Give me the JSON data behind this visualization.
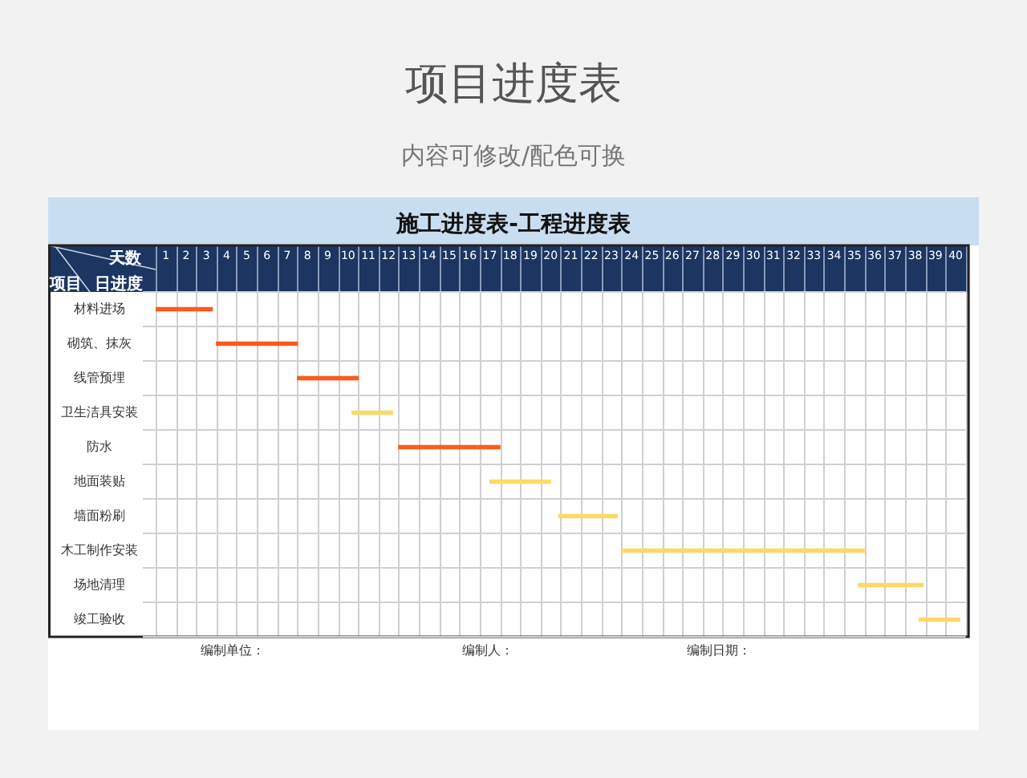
{
  "chart_data": {
    "type": "bar",
    "orientation": "horizontal",
    "title": "项目进度表",
    "subtitle": "内容可修改/配色可换",
    "xlabel": "天数",
    "ylabel": "项目",
    "annotations": [
      "施工进度表-工程进度表",
      "日进度",
      "编制单位：",
      "编制人：",
      "编制日期："
    ],
    "categories": [
      "材料进场",
      "砌筑、抹灰",
      "线管预埋",
      "卫生洁具安装",
      "防水",
      "地面装贴",
      "墙面粉刷",
      "木工制作安装",
      "场地清理",
      "竣工验收"
    ],
    "base": [
      0,
      3,
      7,
      9.7,
      12,
      16.5,
      19.9,
      23,
      34.7,
      37.7
    ],
    "values": [
      2.8,
      4,
      3,
      2,
      5,
      3,
      2.9,
      12,
      3.2,
      2
    ],
    "colors": [
      "#ff5a1f",
      "#ff5a1f",
      "#ff5a1f",
      "#ffd966",
      "#ff5a1f",
      "#ffd966",
      "#ffd966",
      "#ffd966",
      "#ffd966",
      "#ffd966"
    ],
    "xlim": [
      0,
      40
    ],
    "xticks": [
      {
        "value": 0.5,
        "label": "1"
      },
      {
        "value": 1.5,
        "label": "2"
      },
      {
        "value": 2.5,
        "label": "3"
      },
      {
        "value": 3.5,
        "label": "4"
      },
      {
        "value": 4.5,
        "label": "5"
      },
      {
        "value": 5.5,
        "label": "6"
      },
      {
        "value": 6.5,
        "label": "7"
      },
      {
        "value": 7.5,
        "label": "8"
      },
      {
        "value": 8.5,
        "label": "9"
      },
      {
        "value": 9.5,
        "label": "10"
      },
      {
        "value": 10.5,
        "label": "11"
      },
      {
        "value": 11.5,
        "label": "12"
      },
      {
        "value": 12.5,
        "label": "13"
      },
      {
        "value": 13.5,
        "label": "14"
      },
      {
        "value": 14.5,
        "label": "15"
      },
      {
        "value": 15.5,
        "label": "16"
      },
      {
        "value": 16.5,
        "label": "17"
      },
      {
        "value": 17.5,
        "label": "18"
      },
      {
        "value": 18.5,
        "label": "19"
      },
      {
        "value": 19.5,
        "label": "20"
      },
      {
        "value": 20.5,
        "label": "21"
      },
      {
        "value": 21.5,
        "label": "22"
      },
      {
        "value": 22.5,
        "label": "23"
      },
      {
        "value": 23.5,
        "label": "24"
      },
      {
        "value": 24.5,
        "label": "25"
      },
      {
        "value": 25.5,
        "label": "26"
      },
      {
        "value": 26.5,
        "label": "27"
      },
      {
        "value": 27.5,
        "label": "28"
      },
      {
        "value": 28.5,
        "label": "29"
      },
      {
        "value": 29.5,
        "label": "30"
      },
      {
        "value": 30.5,
        "label": "31"
      },
      {
        "value": 31.5,
        "label": "32"
      },
      {
        "value": 32.5,
        "label": "33"
      },
      {
        "value": 33.5,
        "label": "34"
      },
      {
        "value": 34.5,
        "label": "35"
      },
      {
        "value": 35.5,
        "label": "36"
      },
      {
        "value": 36.5,
        "label": "37"
      },
      {
        "value": 37.5,
        "label": "38"
      },
      {
        "value": 38.5,
        "label": "39"
      },
      {
        "value": 39.5,
        "label": "40"
      }
    ],
    "grid": true
  }
}
